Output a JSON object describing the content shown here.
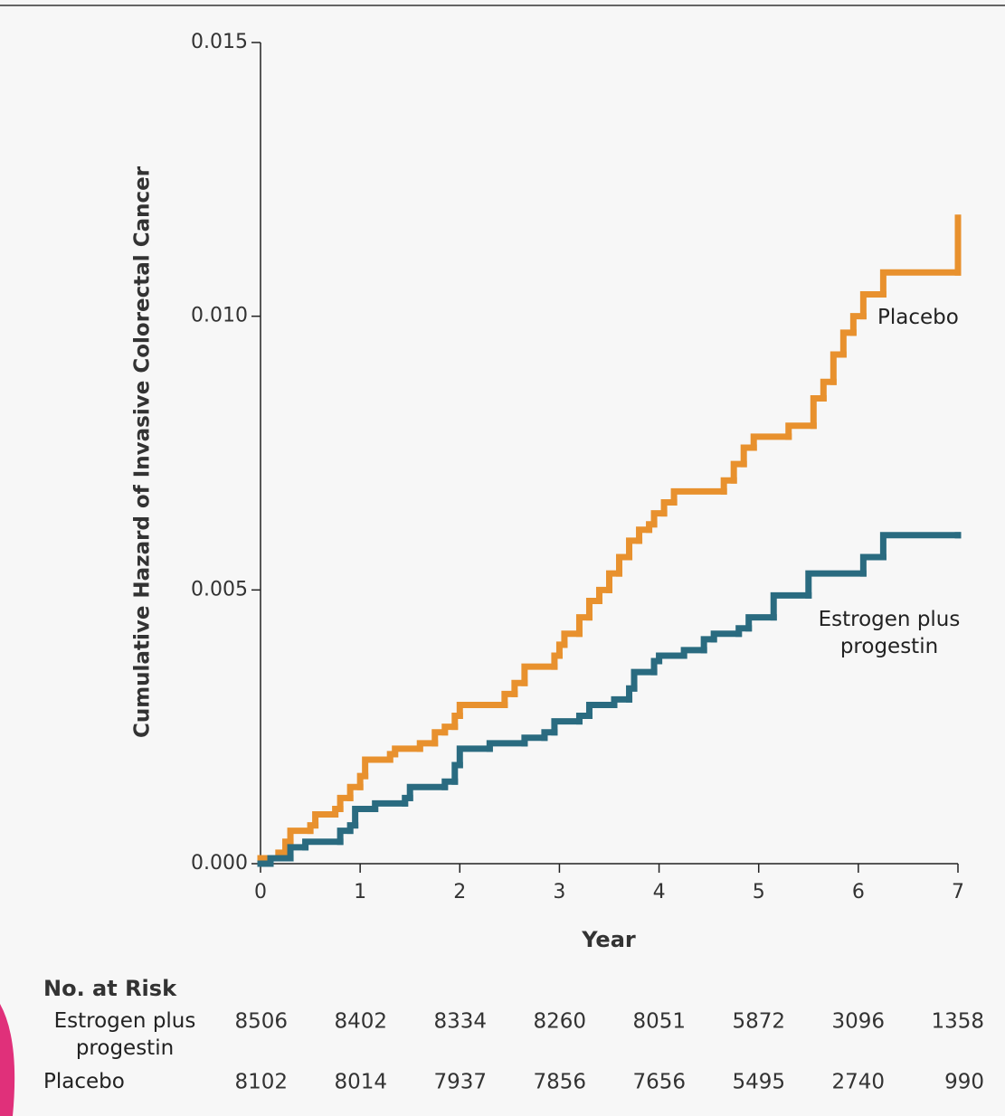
{
  "chart_data": {
    "type": "step",
    "x_label": "Year",
    "y_label": "Cumulative Hazard of Invasive Colorectal Cancer",
    "xlim": [
      0,
      7
    ],
    "xticks": [
      0,
      1,
      2,
      3,
      4,
      5,
      6,
      7
    ],
    "ylim": [
      0,
      0.015
    ],
    "yticks": [
      {
        "value": 0,
        "label": "0.000"
      },
      {
        "value": 0.005,
        "label": "0.005"
      },
      {
        "value": 0.01,
        "label": "0.010"
      },
      {
        "value": 0.015,
        "label": "0.015"
      }
    ],
    "series": [
      {
        "name": "Placebo",
        "color": "#e8912e",
        "x": [
          0,
          0.18,
          0.25,
          0.3,
          0.5,
          0.55,
          0.75,
          0.8,
          0.9,
          1.0,
          1.05,
          1.3,
          1.35,
          1.6,
          1.75,
          1.85,
          1.95,
          2.0,
          2.45,
          2.55,
          2.65,
          2.95,
          3.0,
          3.05,
          3.2,
          3.3,
          3.4,
          3.5,
          3.6,
          3.7,
          3.8,
          3.9,
          3.95,
          4.05,
          4.15,
          4.65,
          4.75,
          4.85,
          4.95,
          5.3,
          5.55,
          5.65,
          5.75,
          5.85,
          5.95,
          6.05,
          6.25,
          7.0
        ],
        "values": [
          0.0001,
          0.0002,
          0.0004,
          0.0006,
          0.0007,
          0.0009,
          0.001,
          0.0012,
          0.0014,
          0.0016,
          0.0019,
          0.002,
          0.0021,
          0.0022,
          0.0024,
          0.0025,
          0.0027,
          0.0029,
          0.0031,
          0.0033,
          0.0036,
          0.0038,
          0.004,
          0.0042,
          0.0045,
          0.0048,
          0.005,
          0.0053,
          0.0056,
          0.0059,
          0.0061,
          0.0062,
          0.0064,
          0.0066,
          0.0068,
          0.007,
          0.0073,
          0.0076,
          0.0078,
          0.008,
          0.0085,
          0.0088,
          0.0093,
          0.0097,
          0.01,
          0.0104,
          0.0108,
          0.0118
        ]
      },
      {
        "name": "Estrogen plus progestin",
        "color": "#2a6b80",
        "x": [
          0,
          0.1,
          0.3,
          0.45,
          0.8,
          0.9,
          0.95,
          1.15,
          1.45,
          1.5,
          1.85,
          1.95,
          2.0,
          2.3,
          2.65,
          2.85,
          2.95,
          3.2,
          3.3,
          3.55,
          3.7,
          3.75,
          3.95,
          4.0,
          4.25,
          4.45,
          4.55,
          4.8,
          4.9,
          5.15,
          5.5,
          6.05,
          6.25,
          7.0
        ],
        "values": [
          0,
          0.0001,
          0.0003,
          0.0004,
          0.0006,
          0.0007,
          0.001,
          0.0011,
          0.0012,
          0.0014,
          0.0015,
          0.0018,
          0.0021,
          0.0022,
          0.0023,
          0.0024,
          0.0026,
          0.0027,
          0.0029,
          0.003,
          0.0032,
          0.0035,
          0.0037,
          0.0038,
          0.0039,
          0.0041,
          0.0042,
          0.0043,
          0.0045,
          0.0049,
          0.0053,
          0.0056,
          0.006,
          0.006
        ]
      }
    ],
    "at_risk": {
      "title": "No. at Risk",
      "rows": [
        {
          "label": "Estrogen plus progestin",
          "values": [
            8506,
            8402,
            8334,
            8260,
            8051,
            5872,
            3096,
            1358
          ]
        },
        {
          "label": "Placebo",
          "values": [
            8102,
            8014,
            7937,
            7856,
            7656,
            5495,
            2740,
            990
          ]
        }
      ]
    }
  }
}
